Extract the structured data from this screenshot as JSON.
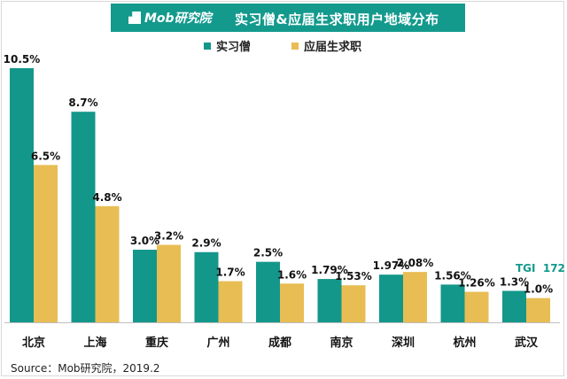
{
  "header": {
    "logo_text": "Mob研究院",
    "title": "实习僧&应届生求职用户地域分布"
  },
  "footer": {
    "source": "Source：Mob研究院，2019.2"
  },
  "annotation": {
    "tgi": "TGI  172"
  },
  "colors": {
    "series1": "#13978a",
    "series2": "#e8bd53",
    "banner": "#139a8d"
  },
  "chart_data": {
    "type": "bar",
    "categories": [
      "北京",
      "上海",
      "重庆",
      "广州",
      "成都",
      "南京",
      "深圳",
      "杭州",
      "武汉"
    ],
    "series": [
      {
        "name": "实习僧",
        "values": [
          10.5,
          8.7,
          3.0,
          2.9,
          2.5,
          1.79,
          1.97,
          1.56,
          1.3
        ],
        "labels": [
          "10.5%",
          "8.7%",
          "3.0%",
          "2.9%",
          "2.5%",
          "1.79%",
          "1.97%",
          "1.56%",
          "1.3%"
        ]
      },
      {
        "name": "应届生求职",
        "values": [
          6.5,
          4.8,
          3.2,
          1.7,
          1.6,
          1.53,
          2.08,
          1.26,
          1.0
        ],
        "labels": [
          "6.5%",
          "4.8%",
          "3.2%",
          "1.7%",
          "1.6%",
          "1.53%",
          "2.08%",
          "1.26%",
          "1.0%"
        ]
      }
    ],
    "ylim": [
      0,
      10.5
    ],
    "grid": false,
    "legend": "top"
  }
}
